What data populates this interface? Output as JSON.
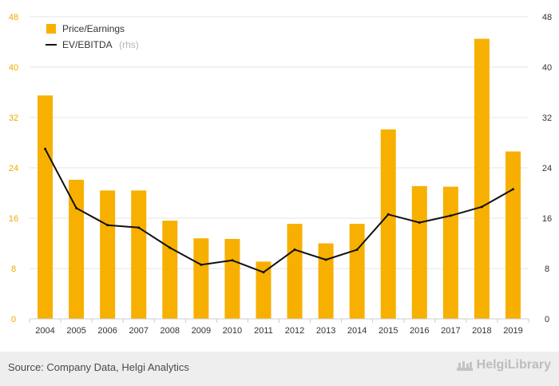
{
  "chart_data": {
    "type": "bar+line",
    "categories": [
      "2004",
      "2005",
      "2006",
      "2007",
      "2008",
      "2009",
      "2010",
      "2011",
      "2012",
      "2013",
      "2014",
      "2015",
      "2016",
      "2017",
      "2018",
      "2019"
    ],
    "series": [
      {
        "name": "Price/Earnings",
        "type": "bar",
        "axis": "left",
        "color": "#f7b000",
        "values": [
          35.5,
          22.1,
          20.4,
          20.4,
          15.6,
          12.8,
          12.7,
          9.1,
          15.1,
          12.0,
          15.1,
          30.1,
          21.1,
          21.0,
          44.5,
          26.6
        ]
      },
      {
        "name": "EV/EBITDA",
        "legend_suffix": "(rhs)",
        "type": "line",
        "axis": "right",
        "color": "#111111",
        "values": [
          27.0,
          17.6,
          14.9,
          14.5,
          11.3,
          8.6,
          9.3,
          7.4,
          11.0,
          9.4,
          11.0,
          16.6,
          15.3,
          16.4,
          17.8,
          20.6
        ]
      }
    ],
    "ylim_left": [
      0,
      48
    ],
    "ylim_right": [
      0,
      48
    ],
    "yticks": [
      0,
      8,
      16,
      24,
      32,
      40,
      48
    ],
    "yticks_left": [
      "0",
      "8",
      "16",
      "24",
      "32",
      "40",
      "48"
    ],
    "yticks_right": [
      "0",
      "8",
      "16",
      "24",
      "32",
      "40",
      "48"
    ],
    "grid": true,
    "legend_position": "top-left"
  },
  "footer": {
    "source": "Source: Company Data, Helgi Analytics",
    "logo_text": "HelgiLibrary"
  }
}
